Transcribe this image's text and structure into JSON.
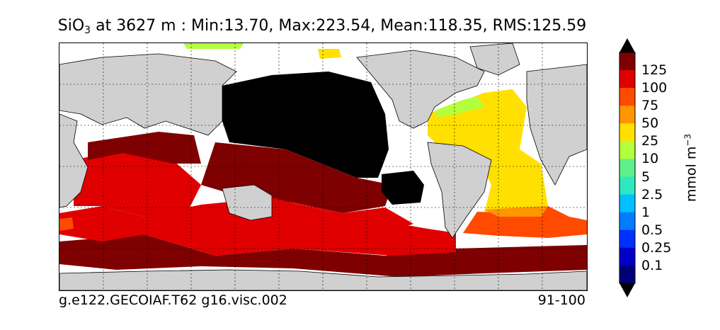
{
  "title": {
    "variable_main": "SiO",
    "variable_sub": "3",
    "text": " at 3627 m : Min:13.70, Max:223.54, Mean:118.35, RMS:125.59"
  },
  "footer": {
    "case": "g.e122.GECOIAF.T62 g16.visc.002",
    "years": "91-100"
  },
  "colorbar": {
    "units_main": "mmol m",
    "units_exp": "−3",
    "labels": [
      "125",
      "100",
      "75",
      "50",
      "25",
      "10",
      "5",
      "2.5",
      "1",
      "0.5",
      "0.25",
      "0.1"
    ],
    "colors": [
      "#7f0000",
      "#e00000",
      "#ff4a00",
      "#ff9600",
      "#ffe000",
      "#b4ff3c",
      "#5ef08a",
      "#2ee8c0",
      "#00c0ff",
      "#007cff",
      "#0030ff",
      "#0000c8",
      "#000078"
    ],
    "over_color": "#000000",
    "under_color": "#000000"
  },
  "map": {
    "land_color": "#d0d0d0",
    "no_data_color": "#ffffff",
    "max_color": "#000000",
    "grid": "dotted"
  }
}
